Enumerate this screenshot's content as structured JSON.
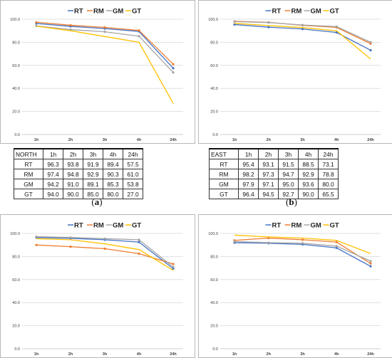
{
  "colors": {
    "RT": "#4472C4",
    "RM": "#ED7D31",
    "GM": "#A5A5A5",
    "GT": "#FFC000"
  },
  "legend": [
    "RT",
    "RM",
    "GM",
    "GT"
  ],
  "y_ticks": [
    "0.0",
    "20.0",
    "40.0",
    "60.0",
    "80.0",
    "100.0"
  ],
  "chart_data": [
    {
      "type": "line",
      "categories": [
        "1h",
        "2h",
        "3h",
        "4h",
        "24h"
      ],
      "ylim": [
        0,
        100
      ],
      "series": [
        {
          "name": "RT",
          "values": [
            96.3,
            93.8,
            91.9,
            89.4,
            57.5
          ]
        },
        {
          "name": "RM",
          "values": [
            97.4,
            94.8,
            92.9,
            90.3,
            61.0
          ]
        },
        {
          "name": "GM",
          "values": [
            94.2,
            91.0,
            89.1,
            85.3,
            53.8
          ]
        },
        {
          "name": "GT",
          "values": [
            94.0,
            90.0,
            85.0,
            80.0,
            27.0
          ]
        }
      ],
      "table": {
        "region": "NORTH",
        "columns": [
          "1h",
          "2h",
          "3h",
          "4h",
          "24h"
        ],
        "rows": [
          {
            "label": "RT",
            "cells": [
              "96.3",
              "93.8",
              "91.9",
              "89.4",
              "57.5"
            ]
          },
          {
            "label": "RM",
            "cells": [
              "97.4",
              "94.8",
              "92.9",
              "90.3",
              "61.0"
            ]
          },
          {
            "label": "GM",
            "cells": [
              "94.2",
              "91.0",
              "89.1",
              "85.3",
              "53.8"
            ]
          },
          {
            "label": "GT",
            "cells": [
              "94.0",
              "90.0",
              "85.0",
              "80.0",
              "27.0"
            ]
          }
        ]
      },
      "caption_letter": "a"
    },
    {
      "type": "line",
      "categories": [
        "1h",
        "2h",
        "3h",
        "4h",
        "24h"
      ],
      "ylim": [
        0,
        100
      ],
      "series": [
        {
          "name": "RT",
          "values": [
            95.4,
            93.1,
            91.5,
            88.5,
            73.1
          ]
        },
        {
          "name": "RM",
          "values": [
            98.2,
            97.3,
            94.7,
            92.9,
            78.8
          ]
        },
        {
          "name": "GM",
          "values": [
            97.9,
            97.1,
            95.0,
            93.6,
            80.0
          ]
        },
        {
          "name": "GT",
          "values": [
            96.4,
            94.5,
            92.7,
            90.0,
            65.5
          ]
        }
      ],
      "table": {
        "region": "EAST",
        "columns": [
          "1h",
          "2h",
          "3h",
          "4h",
          "24h"
        ],
        "rows": [
          {
            "label": "RT",
            "cells": [
              "95.4",
              "93.1",
              "91.5",
              "88.5",
              "73.1"
            ]
          },
          {
            "label": "RM",
            "cells": [
              "98.2",
              "97.3",
              "94.7",
              "92.9",
              "78.8"
            ]
          },
          {
            "label": "GM",
            "cells": [
              "97.9",
              "97.1",
              "95.0",
              "93.6",
              "80.0"
            ]
          },
          {
            "label": "GT",
            "cells": [
              "96.4",
              "94.5",
              "92.7",
              "90.0",
              "65.5"
            ]
          }
        ]
      },
      "caption_letter": "b"
    },
    {
      "type": "line",
      "categories": [
        "1h",
        "2h",
        "3h",
        "4h",
        "24h"
      ],
      "ylim": [
        0,
        100
      ],
      "series": [
        {
          "name": "RT",
          "values": [
            96.5,
            95.8,
            94.5,
            92.5,
            69.5
          ]
        },
        {
          "name": "RM",
          "values": [
            90.0,
            88.5,
            86.8,
            82.5,
            73.5
          ]
        },
        {
          "name": "GM",
          "values": [
            97.2,
            96.5,
            95.5,
            94.5,
            71.0
          ]
        },
        {
          "name": "GT",
          "values": [
            95.5,
            94.5,
            91.0,
            86.0,
            68.0
          ]
        }
      ]
    },
    {
      "type": "line",
      "categories": [
        "1h",
        "2h",
        "3h",
        "4h",
        "24h"
      ],
      "ylim": [
        0,
        100
      ],
      "series": [
        {
          "name": "RT",
          "values": [
            92.0,
            91.5,
            90.5,
            87.5,
            71.5
          ]
        },
        {
          "name": "RM",
          "values": [
            94.0,
            96.0,
            94.5,
            92.5,
            74.0
          ]
        },
        {
          "name": "GM",
          "values": [
            93.0,
            92.0,
            91.5,
            89.0,
            76.0
          ]
        },
        {
          "name": "GT",
          "values": [
            98.5,
            97.0,
            96.0,
            94.0,
            82.5
          ]
        }
      ]
    }
  ]
}
